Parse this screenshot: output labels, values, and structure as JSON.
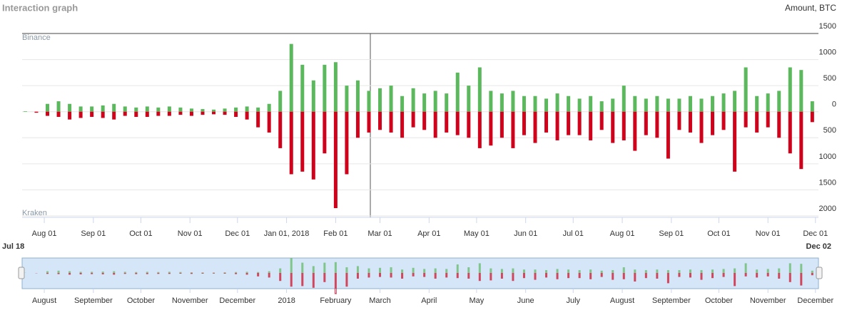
{
  "chart_data": {
    "type": "diverging-bar",
    "title": "Interaction graph",
    "y_axis_label": "Amount, BTC",
    "xlim": [
      "2017-07-18",
      "2018-12-02"
    ],
    "ylim": [
      -2000,
      1500
    ],
    "yticks": [
      1500,
      1000,
      500,
      0,
      {
        "value": -500,
        "label": "500"
      },
      {
        "value": -1000,
        "label": "1000"
      },
      {
        "value": -1500,
        "label": "1500"
      },
      {
        "value": -2000,
        "label": "2000"
      }
    ],
    "xticks": [
      {
        "value": "2017-08-01",
        "label": "Aug 01"
      },
      {
        "value": "2017-09-01",
        "label": "Sep 01"
      },
      {
        "value": "2017-10-01",
        "label": "Oct 01"
      },
      {
        "value": "2017-11-01",
        "label": "Nov 01"
      },
      {
        "value": "2017-12-01",
        "label": "Dec 01"
      },
      {
        "value": "2018-01-01",
        "label": "Jan 01, 2018"
      },
      {
        "value": "2018-02-01",
        "label": "Feb 01"
      },
      {
        "value": "2018-03-01",
        "label": "Mar 01"
      },
      {
        "value": "2018-04-01",
        "label": "Apr 01"
      },
      {
        "value": "2018-05-01",
        "label": "May 01"
      },
      {
        "value": "2018-06-01",
        "label": "Jun 01"
      },
      {
        "value": "2018-07-01",
        "label": "Jul 01"
      },
      {
        "value": "2018-08-01",
        "label": "Aug 01"
      },
      {
        "value": "2018-09-01",
        "label": "Sep 01"
      },
      {
        "value": "2018-10-01",
        "label": "Oct 01"
      },
      {
        "value": "2018-11-01",
        "label": "Nov 01"
      },
      {
        "value": "2018-12-01",
        "label": "Dec 01"
      }
    ],
    "grid": true,
    "x": [
      "2017-07-20",
      "2017-07-27",
      "2017-08-03",
      "2017-08-10",
      "2017-08-17",
      "2017-08-24",
      "2017-08-31",
      "2017-09-07",
      "2017-09-14",
      "2017-09-21",
      "2017-09-28",
      "2017-10-05",
      "2017-10-12",
      "2017-10-19",
      "2017-10-26",
      "2017-11-02",
      "2017-11-09",
      "2017-11-16",
      "2017-11-23",
      "2017-11-30",
      "2017-12-07",
      "2017-12-14",
      "2017-12-21",
      "2017-12-28",
      "2018-01-04",
      "2018-01-11",
      "2018-01-18",
      "2018-01-25",
      "2018-02-01",
      "2018-02-08",
      "2018-02-15",
      "2018-02-22",
      "2018-03-01",
      "2018-03-08",
      "2018-03-15",
      "2018-03-22",
      "2018-03-29",
      "2018-04-05",
      "2018-04-12",
      "2018-04-19",
      "2018-04-26",
      "2018-05-03",
      "2018-05-10",
      "2018-05-17",
      "2018-05-24",
      "2018-05-31",
      "2018-06-07",
      "2018-06-14",
      "2018-06-21",
      "2018-06-28",
      "2018-07-05",
      "2018-07-12",
      "2018-07-19",
      "2018-07-26",
      "2018-08-02",
      "2018-08-09",
      "2018-08-16",
      "2018-08-23",
      "2018-08-30",
      "2018-09-06",
      "2018-09-13",
      "2018-09-20",
      "2018-09-27",
      "2018-10-04",
      "2018-10-11",
      "2018-10-18",
      "2018-10-25",
      "2018-11-01",
      "2018-11-08",
      "2018-11-15",
      "2018-11-22",
      "2018-11-29"
    ],
    "series": [
      {
        "name": "Binance",
        "color": "#5cb85c",
        "values": [
          10,
          0,
          150,
          200,
          150,
          100,
          100,
          120,
          150,
          100,
          80,
          100,
          80,
          100,
          80,
          60,
          50,
          40,
          60,
          80,
          100,
          80,
          150,
          400,
          1300,
          900,
          600,
          900,
          950,
          500,
          600,
          400,
          450,
          500,
          300,
          450,
          350,
          400,
          350,
          750,
          500,
          850,
          400,
          350,
          400,
          300,
          300,
          250,
          350,
          300,
          250,
          300,
          200,
          250,
          500,
          300,
          250,
          300,
          250,
          250,
          300,
          250,
          300,
          350,
          400,
          850,
          300,
          350,
          400,
          850,
          800,
          200
        ]
      },
      {
        "name": "Kraken",
        "color": "#d0021b",
        "values": [
          0,
          -20,
          -80,
          -100,
          -150,
          -120,
          -100,
          -120,
          -150,
          -80,
          -100,
          -100,
          -80,
          -80,
          -60,
          -80,
          -60,
          -50,
          -60,
          -100,
          -150,
          -300,
          -400,
          -700,
          -1200,
          -1150,
          -1300,
          -800,
          -1850,
          -1200,
          -500,
          -400,
          -350,
          -400,
          -500,
          -300,
          -350,
          -500,
          -400,
          -450,
          -500,
          -700,
          -650,
          -500,
          -700,
          -450,
          -600,
          -400,
          -550,
          -450,
          -450,
          -550,
          -350,
          -600,
          -550,
          -750,
          -450,
          -500,
          -900,
          -350,
          -400,
          -600,
          -450,
          -350,
          -1150,
          -300,
          -400,
          -300,
          -500,
          -800,
          -1100,
          -200
        ]
      }
    ],
    "navigator": {
      "range_start": "Jul 18",
      "range_end": "Dec 02",
      "ticks": [
        {
          "value": "2017-08-01",
          "label": "August"
        },
        {
          "value": "2017-09-01",
          "label": "September"
        },
        {
          "value": "2017-10-01",
          "label": "October"
        },
        {
          "value": "2017-11-01",
          "label": "November"
        },
        {
          "value": "2017-12-01",
          "label": "December"
        },
        {
          "value": "2018-01-01",
          "label": "2018"
        },
        {
          "value": "2018-02-01",
          "label": "February"
        },
        {
          "value": "2018-03-01",
          "label": "March"
        },
        {
          "value": "2018-04-01",
          "label": "April"
        },
        {
          "value": "2018-05-01",
          "label": "May"
        },
        {
          "value": "2018-06-01",
          "label": "June"
        },
        {
          "value": "2018-07-01",
          "label": "July"
        },
        {
          "value": "2018-08-01",
          "label": "August"
        },
        {
          "value": "2018-09-01",
          "label": "September"
        },
        {
          "value": "2018-10-01",
          "label": "October"
        },
        {
          "value": "2018-11-01",
          "label": "November"
        },
        {
          "value": "2018-12-01",
          "label": "December"
        }
      ]
    }
  }
}
